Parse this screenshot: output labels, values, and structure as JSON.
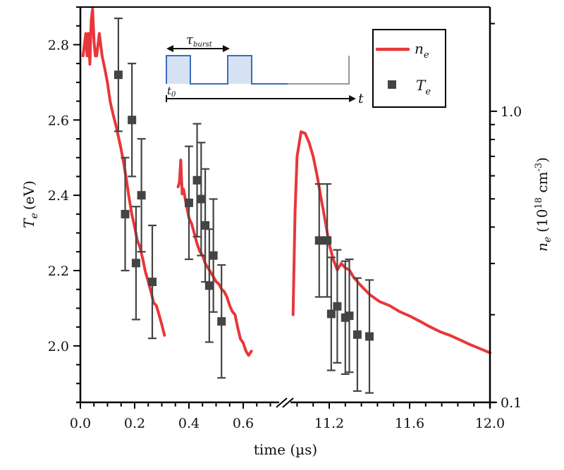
{
  "chart_data": {
    "type": "line+scatter",
    "title": "",
    "xlabel": "time (µs)",
    "ylabel_left": {
      "symbol": "T",
      "sub": "e",
      "unit": "(eV)"
    },
    "ylabel_right": {
      "symbol": "n",
      "sub": "e",
      "unit_prefix": "(10",
      "unit_exp": "18",
      "unit_mid": " cm",
      "unit_exp2": "-3",
      "unit_suffix": ")"
    },
    "x_axis": {
      "broken": true,
      "segments": [
        {
          "range": [
            0.0,
            0.75
          ],
          "ticks": [
            "0.0",
            "0.2",
            "0.4",
            "0.6"
          ],
          "tick_values": [
            0.0,
            0.2,
            0.4,
            0.6
          ],
          "minor_step": 0.05
        },
        {
          "range": [
            11.0,
            12.0
          ],
          "ticks": [
            "11.2",
            "11.6",
            "12.0"
          ],
          "tick_values": [
            11.2,
            11.6,
            12.0
          ],
          "minor_step": 0.08
        }
      ]
    },
    "y_left": {
      "range": [
        1.85,
        2.9
      ],
      "ticks": [
        "2.0",
        "2.2",
        "2.4",
        "2.6",
        "2.8"
      ],
      "tick_values": [
        2.0,
        2.2,
        2.4,
        2.6,
        2.8
      ],
      "minor_step": 0.05
    },
    "y_right": {
      "scale": "log",
      "range": [
        0.1,
        2.28
      ],
      "ticks": [
        "0.1",
        "1.0"
      ],
      "tick_values": [
        0.1,
        1.0
      ],
      "minor_values": [
        0.2,
        0.3,
        0.4,
        0.5,
        0.6,
        0.7,
        0.8,
        0.9,
        2.0
      ]
    },
    "legend": {
      "position": "top-right",
      "entries": [
        {
          "label_symbol": "n",
          "label_sub": "e",
          "marker": "line",
          "color": "#e8373a"
        },
        {
          "label_symbol": "T",
          "label_sub": "e",
          "marker": "square",
          "color": "#444444"
        }
      ]
    },
    "series": [
      {
        "name": "n_e",
        "axis": "right",
        "color": "#e8373a",
        "segments": [
          {
            "x": [
              0.01,
              0.02,
              0.025,
              0.03,
              0.035,
              0.04,
              0.045,
              0.05,
              0.055,
              0.06,
              0.07,
              0.08,
              0.09,
              0.1,
              0.11,
              0.12,
              0.13,
              0.14,
              0.15,
              0.16,
              0.17,
              0.18,
              0.19,
              0.2,
              0.21,
              0.22,
              0.23,
              0.24,
              0.25,
              0.26,
              0.27,
              0.28,
              0.29,
              0.3,
              0.31
            ],
            "y": [
              1.55,
              1.85,
              1.55,
              1.85,
              1.45,
              2.05,
              2.25,
              1.75,
              1.55,
              1.55,
              1.85,
              1.55,
              1.4,
              1.25,
              1.08,
              0.98,
              0.9,
              0.82,
              0.74,
              0.66,
              0.58,
              0.5,
              0.44,
              0.4,
              0.36,
              0.34,
              0.31,
              0.28,
              0.26,
              0.24,
              0.22,
              0.215,
              0.2,
              0.185,
              0.17
            ]
          },
          {
            "x": [
              0.36,
              0.365,
              0.37,
              0.375,
              0.38,
              0.39,
              0.4,
              0.41,
              0.42,
              0.43,
              0.44,
              0.45,
              0.46,
              0.47,
              0.48,
              0.49,
              0.5,
              0.51,
              0.52,
              0.53,
              0.54,
              0.55,
              0.56,
              0.57,
              0.58,
              0.59,
              0.6,
              0.61,
              0.62,
              0.63
            ],
            "y": [
              0.55,
              0.57,
              0.68,
              0.52,
              0.54,
              0.48,
              0.43,
              0.41,
              0.38,
              0.35,
              0.33,
              0.32,
              0.3,
              0.29,
              0.28,
              0.27,
              0.26,
              0.255,
              0.245,
              0.24,
              0.23,
              0.215,
              0.205,
              0.2,
              0.18,
              0.165,
              0.16,
              0.15,
              0.145,
              0.15
            ]
          },
          {
            "x": [
              11.02,
              11.03,
              11.04,
              11.06,
              11.08,
              11.1,
              11.12,
              11.14,
              11.16,
              11.18,
              11.2,
              11.22,
              11.24,
              11.26,
              11.28,
              11.3,
              11.32,
              11.35,
              11.4,
              11.45,
              11.5,
              11.55,
              11.6,
              11.65,
              11.7,
              11.75,
              11.8,
              11.85,
              11.9,
              11.95,
              12.0
            ],
            "y": [
              0.2,
              0.45,
              0.7,
              0.85,
              0.84,
              0.78,
              0.7,
              0.6,
              0.5,
              0.42,
              0.35,
              0.31,
              0.285,
              0.3,
              0.29,
              0.285,
              0.27,
              0.255,
              0.235,
              0.222,
              0.215,
              0.205,
              0.198,
              0.19,
              0.182,
              0.175,
              0.17,
              0.164,
              0.158,
              0.153,
              0.148
            ]
          }
        ]
      },
      {
        "name": "T_e",
        "axis": "left",
        "color": "#444444",
        "points": [
          {
            "x": 0.14,
            "y": 2.72,
            "err": 0.15
          },
          {
            "x": 0.165,
            "y": 2.35,
            "err": 0.15
          },
          {
            "x": 0.19,
            "y": 2.6,
            "err": 0.15
          },
          {
            "x": 0.205,
            "y": 2.22,
            "err": 0.15
          },
          {
            "x": 0.225,
            "y": 2.4,
            "err": 0.15
          },
          {
            "x": 0.265,
            "y": 2.17,
            "err": 0.15
          },
          {
            "x": 0.4,
            "y": 2.38,
            "err": 0.15
          },
          {
            "x": 0.43,
            "y": 2.44,
            "err": 0.15
          },
          {
            "x": 0.445,
            "y": 2.39,
            "err": 0.15
          },
          {
            "x": 0.46,
            "y": 2.32,
            "err": 0.15
          },
          {
            "x": 0.475,
            "y": 2.16,
            "err": 0.15
          },
          {
            "x": 0.49,
            "y": 2.24,
            "err": 0.15
          },
          {
            "x": 0.52,
            "y": 2.065,
            "err": 0.15
          },
          {
            "x": 11.15,
            "y": 2.28,
            "err": 0.15
          },
          {
            "x": 11.19,
            "y": 2.28,
            "err": 0.15
          },
          {
            "x": 11.21,
            "y": 2.085,
            "err": 0.15
          },
          {
            "x": 11.24,
            "y": 2.105,
            "err": 0.15
          },
          {
            "x": 11.28,
            "y": 2.075,
            "err": 0.15
          },
          {
            "x": 11.3,
            "y": 2.08,
            "err": 0.15
          },
          {
            "x": 11.34,
            "y": 2.03,
            "err": 0.15
          },
          {
            "x": 11.4,
            "y": 2.025,
            "err": 0.15
          }
        ]
      }
    ],
    "inset": {
      "description": "burst pulse timing diagram",
      "tau_label": "τ",
      "tau_sub": "burst",
      "t0_label": "t",
      "t0_sub": "0",
      "t_label": "t",
      "pulse_color": "#3a6bbf",
      "pulse_fill": "#d6e2f2",
      "tail_color": "#999999"
    }
  }
}
